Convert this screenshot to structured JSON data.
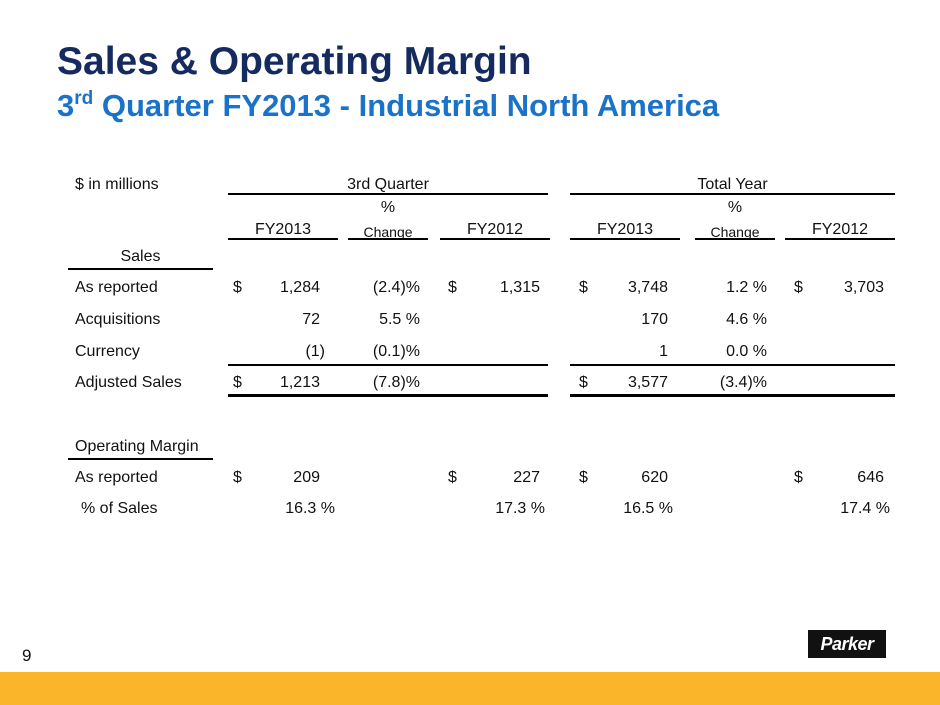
{
  "header": {
    "title": "Sales & Operating Margin",
    "subtitle_main": "3",
    "subtitle_sup": "rd",
    "subtitle_rest": " Quarter FY2013 - Industrial North America"
  },
  "table": {
    "units_label": "$  in millions",
    "group_q": "3rd Quarter",
    "group_y": "Total Year",
    "col_fy2013": "FY2013",
    "col_pct_top": "%",
    "col_pct_bottom": "Change",
    "col_fy2012": "FY2012",
    "section_sales": "Sales",
    "section_margin": "Operating Margin",
    "dollar": "$",
    "rows": {
      "as_reported": {
        "label": "As reported",
        "q13": "1,284",
        "qchg": "(2.4)%",
        "q12": "1,315",
        "y13": "3,748",
        "ychg": "1.2 %",
        "y12": "3,703"
      },
      "acquisitions": {
        "label": "Acquisitions",
        "q13": "72",
        "qchg": "5.5 %",
        "y13": "170",
        "ychg": "4.6 %"
      },
      "currency": {
        "label": "Currency",
        "q13": "(1)",
        "qchg": "(0.1)%",
        "y13": "1",
        "ychg": "0.0 %"
      },
      "adjusted": {
        "label": "Adjusted Sales",
        "q13": "1,213",
        "qchg": "(7.8)%",
        "y13": "3,577",
        "ychg": "(3.4)%"
      },
      "om_reported": {
        "label": "As reported",
        "q13": "209",
        "q12": "227",
        "y13": "620",
        "y12": "646"
      },
      "pct_sales": {
        "label": "% of Sales",
        "q13": "16.3 %",
        "q12": "17.3 %",
        "y13": "16.5 %",
        "y12": "17.4 %"
      }
    }
  },
  "footer": {
    "page_number": "9",
    "logo_text": "Parker"
  }
}
